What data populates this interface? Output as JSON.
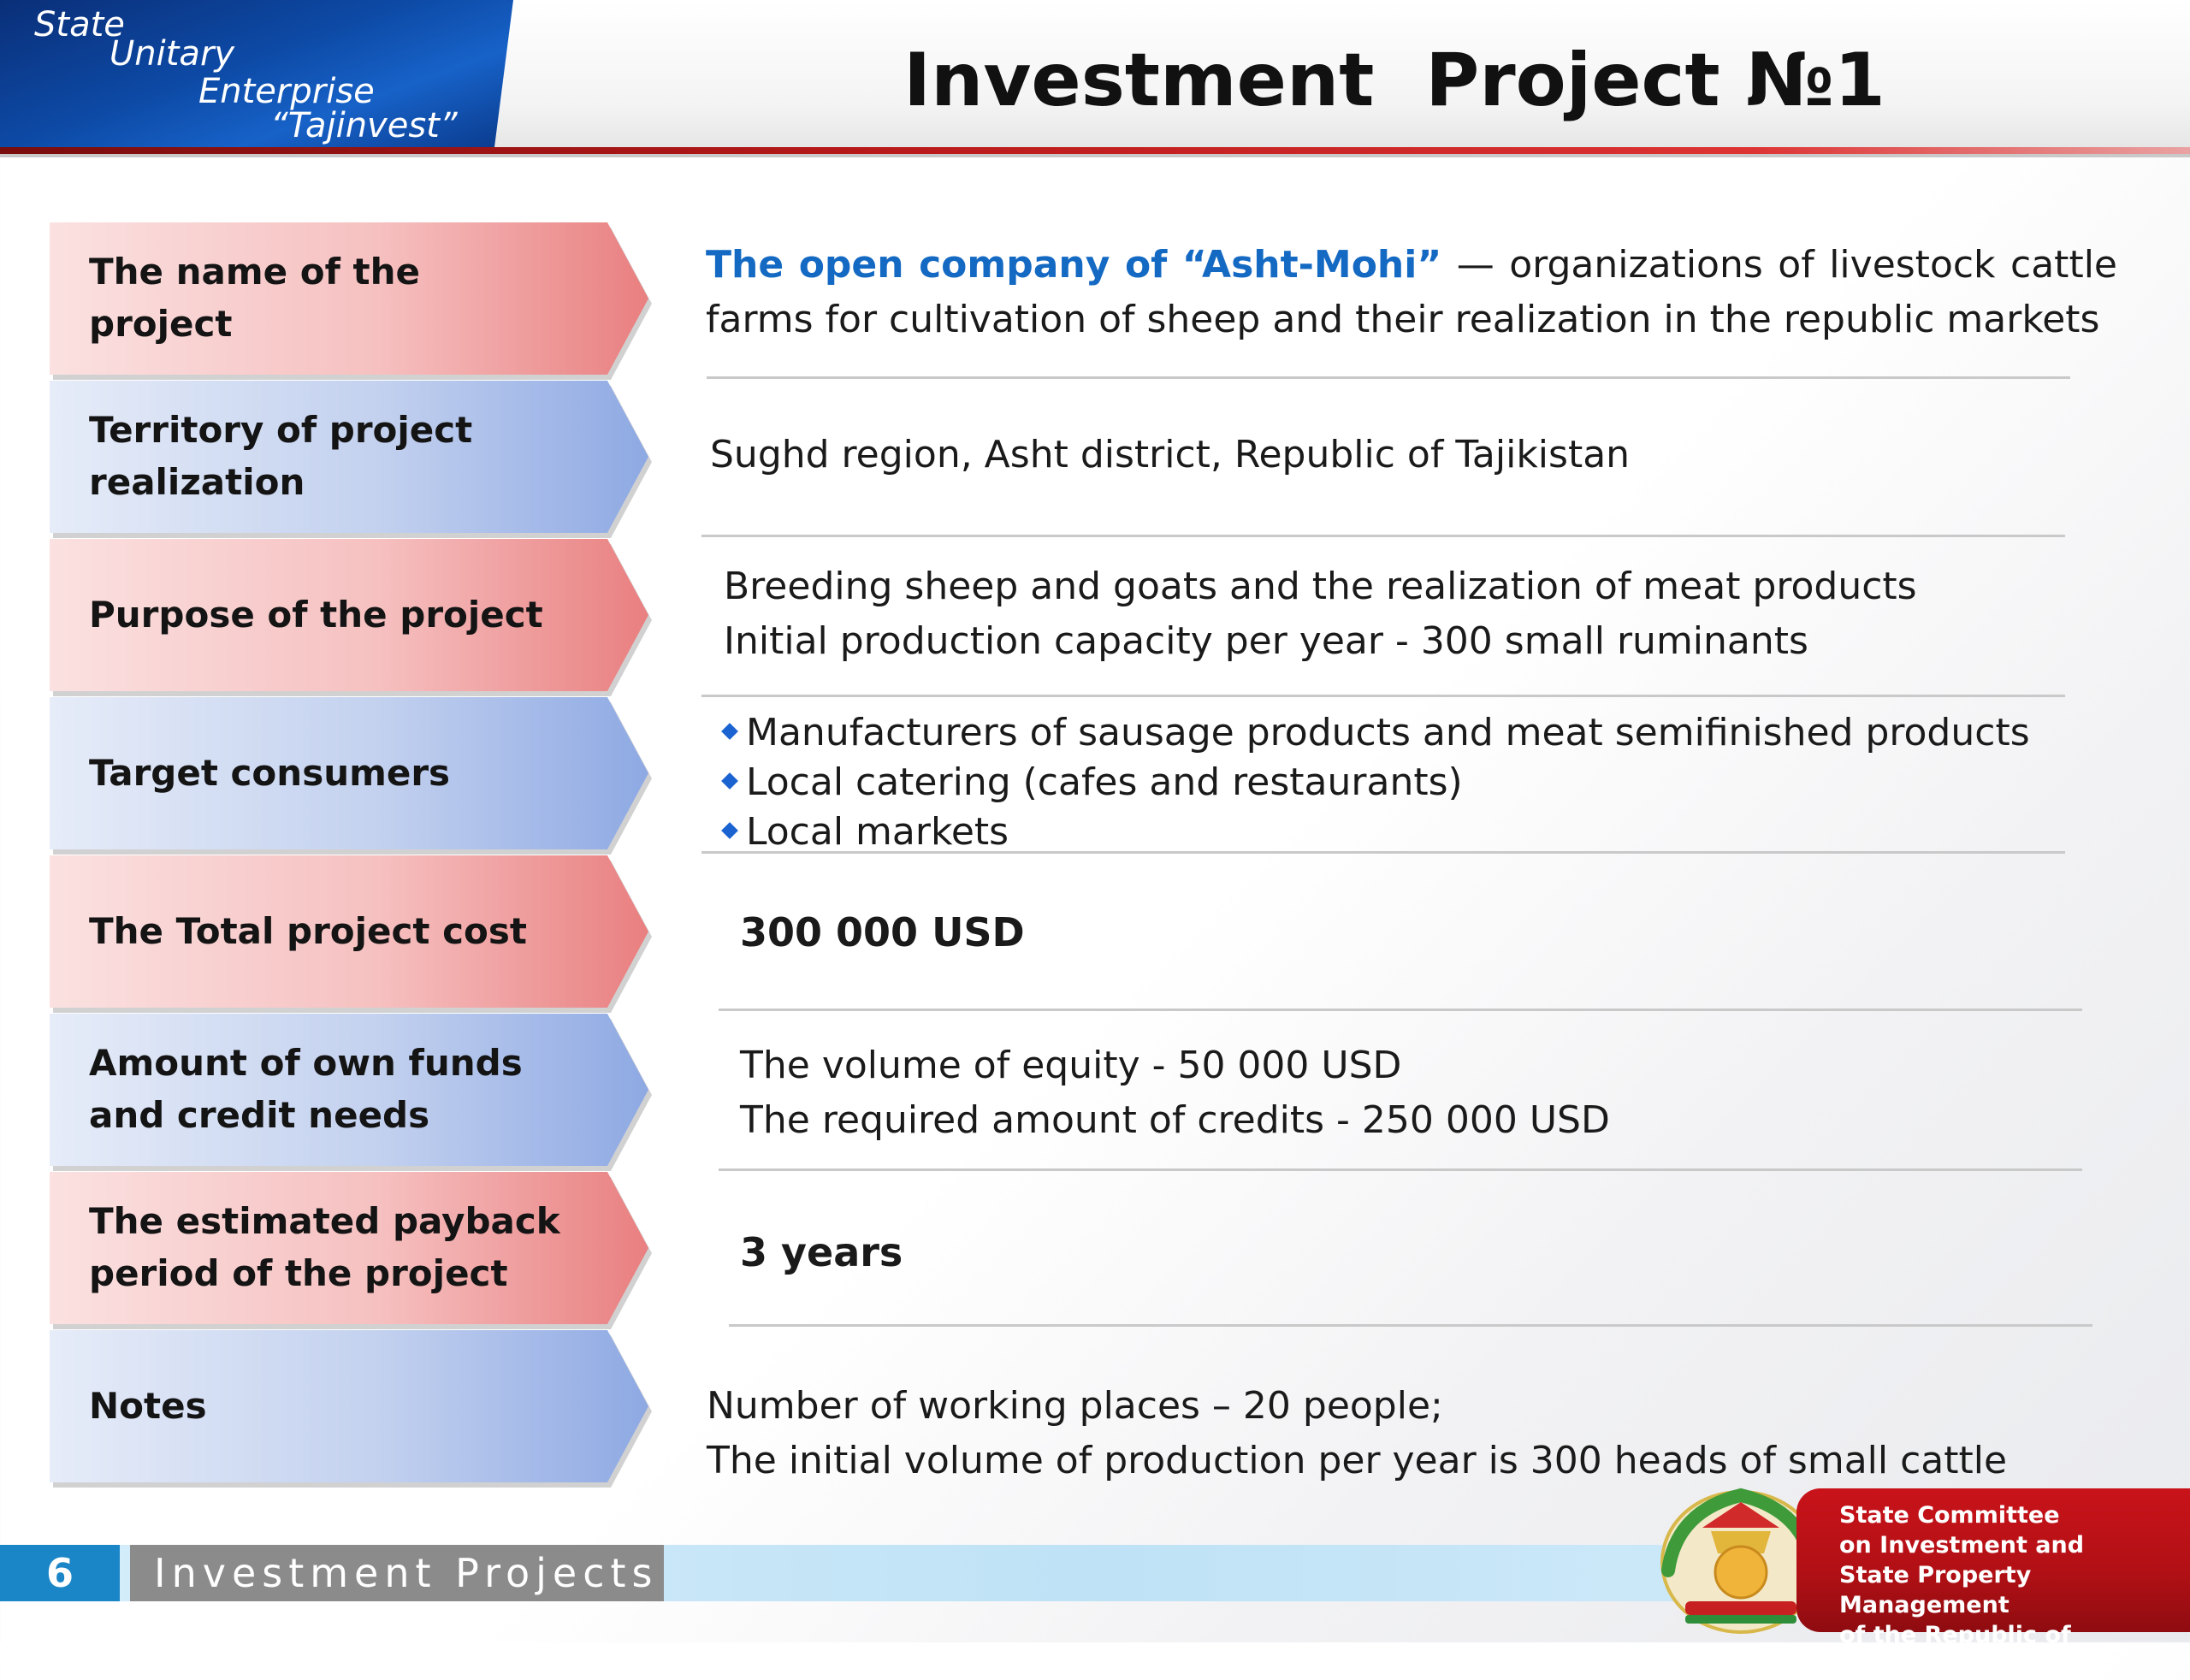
{
  "header": {
    "logo_lines": [
      "State",
      "Unitary",
      "Enterprise",
      "“Tajinvest”"
    ],
    "title": "Investment  Project №1"
  },
  "rows": [
    {
      "label": "The name of the project"
    },
    {
      "label": "Territory of project realization"
    },
    {
      "label": "Purpose of the project"
    },
    {
      "label": "Target consumers"
    },
    {
      "label": "The Total project cost"
    },
    {
      "label": "Amount of own funds and credit needs"
    },
    {
      "label": "The estimated payback period of the project"
    },
    {
      "label": "Notes"
    }
  ],
  "values": {
    "project_name": {
      "highlight_words": [
        "The",
        "open",
        "company",
        "of",
        "“Asht-Mohi”"
      ],
      "rest_words": [
        "—",
        "organizations",
        "of",
        "livestock",
        "cattle"
      ],
      "line2": "farms for cultivation of sheep and their realization in the republic markets"
    },
    "territory": "Sughd region, Asht district, Republic of Tajikistan",
    "purpose": [
      "Breeding sheep and goats and the realization of meat products",
      "Initial production capacity per year - 300 small ruminants"
    ],
    "consumers": [
      "Manufacturers of sausage products and meat semifinished products",
      "Local catering (cafes and restaurants)",
      "Local markets"
    ],
    "total_cost": "300 000 USD",
    "funds": [
      "The volume of equity - 50 000 USD",
      "The required amount of credits - 250 000 USD"
    ],
    "payback": "3 years",
    "notes": [
      "Number of working places – 20 people;",
      "The initial volume of production per year is 300 heads of small cattle"
    ]
  },
  "footer": {
    "page_number": "6",
    "section": "Investment Projects",
    "committee_lines": [
      "State Committee",
      "on Investment and",
      "State Property Management",
      "of the Republic of Tajikistan"
    ]
  },
  "colors": {
    "pink_row": "#f6c0c0",
    "blue_row": "#c3d1ef",
    "highlight": "#1469c3",
    "accent_red": "#b8191a",
    "logo_blue": "#0d4aa6"
  }
}
